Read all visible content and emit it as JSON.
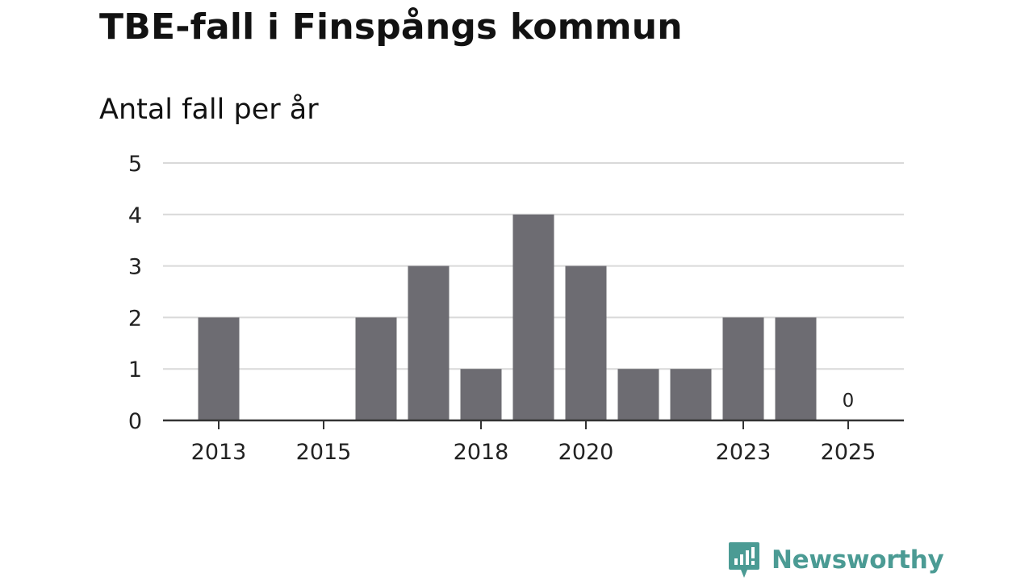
{
  "title": "TBE-fall i Finspångs kommun",
  "subtitle": "Antal fall per år",
  "brand": {
    "name": "Newsworthy",
    "color": "#4b9b94",
    "icon": "newsworthy-logo-icon"
  },
  "chart_data": {
    "type": "bar",
    "title": "TBE-fall i Finspångs kommun",
    "ylabel": "Antal fall per år",
    "xlabel": "",
    "categories": [
      "2013",
      "2014",
      "2015",
      "2016",
      "2017",
      "2018",
      "2019",
      "2020",
      "2021",
      "2022",
      "2023",
      "2024",
      "2025"
    ],
    "values": [
      2,
      0,
      0,
      2,
      3,
      1,
      4,
      3,
      1,
      1,
      2,
      2,
      0
    ],
    "x_tick_labels": [
      "2013",
      "2015",
      "2018",
      "2020",
      "2023",
      "2025"
    ],
    "y_ticks": [
      "0",
      "1",
      "2",
      "3",
      "4",
      "5"
    ],
    "ylim": [
      0,
      5
    ],
    "annotations": [
      {
        "category": "2025",
        "text": "0"
      }
    ],
    "bar_color": "#6d6c72",
    "grid": true,
    "legend": "none"
  }
}
